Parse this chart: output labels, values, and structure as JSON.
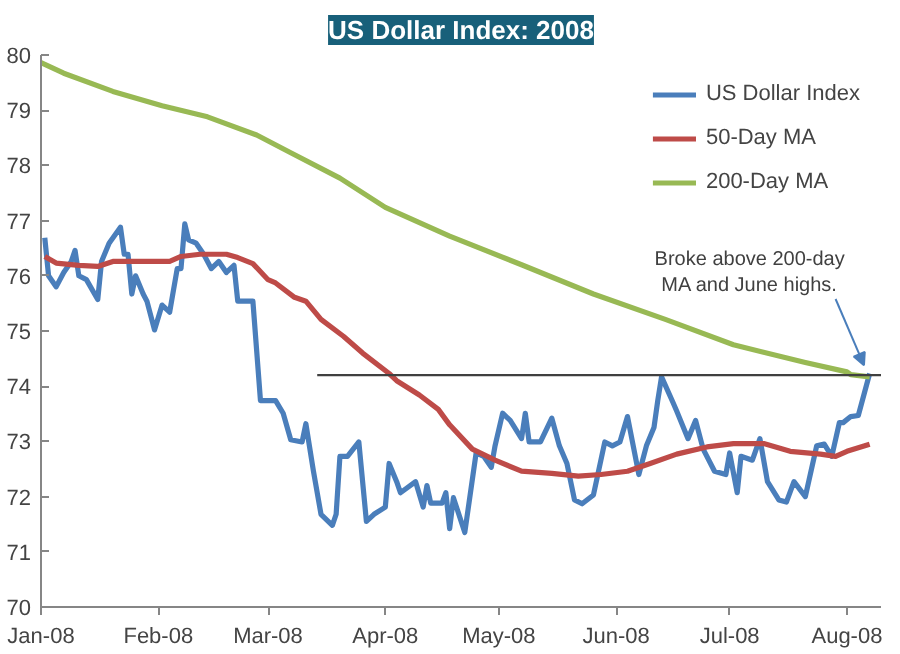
{
  "chart_data": {
    "type": "line",
    "title": "US Dollar Index: 2008",
    "xlim": [
      "2008-01-01",
      "2008-08-10"
    ],
    "xticks": [
      {
        "value": "2008-01-01",
        "label": "Jan-08"
      },
      {
        "value": "2008-02-01",
        "label": "Feb-08"
      },
      {
        "value": "2008-03-01",
        "label": "Mar-08"
      },
      {
        "value": "2008-04-01",
        "label": "Apr-08"
      },
      {
        "value": "2008-05-01",
        "label": "May-08"
      },
      {
        "value": "2008-06-01",
        "label": "Jun-08"
      },
      {
        "value": "2008-07-01",
        "label": "Jul-08"
      },
      {
        "value": "2008-08-01",
        "label": "Aug-08"
      }
    ],
    "ylim": [
      70,
      80
    ],
    "yticks": [
      70,
      71,
      72,
      73,
      74,
      75,
      76,
      77,
      78,
      79,
      80
    ],
    "grid": false,
    "legend": "top right",
    "line_style": "solid",
    "marker": "none",
    "series": [
      {
        "name": "US Dollar Index",
        "color": "#4a7ebb",
        "x": [
          "2008-01-02",
          "2008-01-03",
          "2008-01-05",
          "2008-01-07",
          "2008-01-09",
          "2008-01-10",
          "2008-01-11",
          "2008-01-13",
          "2008-01-16",
          "2008-01-17",
          "2008-01-19",
          "2008-01-22",
          "2008-01-23",
          "2008-01-24",
          "2008-01-25",
          "2008-01-26",
          "2008-01-28",
          "2008-01-29",
          "2008-01-31",
          "2008-02-02",
          "2008-02-04",
          "2008-02-06",
          "2008-02-07",
          "2008-02-08",
          "2008-02-09",
          "2008-02-11",
          "2008-02-13",
          "2008-02-15",
          "2008-02-17",
          "2008-02-19",
          "2008-02-21",
          "2008-02-22",
          "2008-02-26",
          "2008-02-28",
          "2008-03-03",
          "2008-03-05",
          "2008-03-07",
          "2008-03-10",
          "2008-03-11",
          "2008-03-13",
          "2008-03-15",
          "2008-03-18",
          "2008-03-19",
          "2008-03-20",
          "2008-03-22",
          "2008-03-25",
          "2008-03-27",
          "2008-03-29",
          "2008-04-01",
          "2008-04-02",
          "2008-04-04",
          "2008-04-05",
          "2008-04-09",
          "2008-04-11",
          "2008-04-12",
          "2008-04-13",
          "2008-04-16",
          "2008-04-17",
          "2008-04-18",
          "2008-04-19",
          "2008-04-22",
          "2008-04-25",
          "2008-04-27",
          "2008-04-29",
          "2008-04-30",
          "2008-05-02",
          "2008-05-04",
          "2008-05-07",
          "2008-05-08",
          "2008-05-09",
          "2008-05-12",
          "2008-05-15",
          "2008-05-17",
          "2008-05-19",
          "2008-05-21",
          "2008-05-23",
          "2008-05-26",
          "2008-05-29",
          "2008-05-31",
          "2008-06-02",
          "2008-06-04",
          "2008-06-07",
          "2008-06-09",
          "2008-06-11",
          "2008-06-12",
          "2008-06-13",
          "2008-06-16",
          "2008-06-17",
          "2008-06-20",
          "2008-06-22",
          "2008-06-24",
          "2008-06-27",
          "2008-06-30",
          "2008-07-01",
          "2008-07-03",
          "2008-07-04",
          "2008-07-07",
          "2008-07-09",
          "2008-07-11",
          "2008-07-14",
          "2008-07-16",
          "2008-07-18",
          "2008-07-21",
          "2008-07-24",
          "2008-07-26",
          "2008-07-28",
          "2008-07-30",
          "2008-07-31",
          "2008-08-02",
          "2008-08-04",
          "2008-08-07"
        ],
        "values": [
          76.69,
          76.0,
          75.8,
          76.06,
          76.26,
          76.46,
          76.0,
          75.93,
          75.57,
          76.26,
          76.59,
          76.88,
          76.39,
          76.39,
          75.67,
          76.0,
          75.67,
          75.54,
          75.02,
          75.47,
          75.34,
          76.13,
          76.13,
          76.94,
          76.65,
          76.59,
          76.39,
          76.13,
          76.26,
          76.06,
          76.19,
          75.54,
          75.54,
          73.74,
          73.74,
          73.51,
          73.03,
          72.99,
          73.32,
          72.46,
          71.68,
          71.48,
          71.68,
          72.73,
          72.73,
          72.99,
          71.55,
          71.68,
          71.81,
          72.6,
          72.27,
          72.07,
          72.27,
          71.81,
          72.2,
          71.88,
          71.88,
          72.07,
          71.42,
          71.98,
          71.35,
          72.79,
          72.73,
          72.53,
          72.92,
          73.51,
          73.38,
          73.05,
          73.51,
          72.99,
          72.99,
          73.42,
          72.92,
          72.6,
          71.94,
          71.87,
          72.03,
          72.99,
          72.92,
          72.99,
          73.45,
          72.4,
          72.92,
          73.25,
          73.74,
          74.17,
          73.71,
          73.55,
          73.05,
          73.38,
          72.86,
          72.46,
          72.4,
          72.79,
          72.07,
          72.73,
          72.66,
          73.05,
          72.27,
          71.94,
          71.9,
          72.27,
          72.0,
          72.92,
          72.95,
          72.73,
          73.34,
          73.34,
          73.45,
          73.47,
          74.23
        ]
      },
      {
        "name": "50-Day MA",
        "color": "#be4b48",
        "x": [
          "2008-01-02",
          "2008-01-05",
          "2008-01-11",
          "2008-01-16",
          "2008-01-20",
          "2008-01-30",
          "2008-02-04",
          "2008-02-07",
          "2008-02-12",
          "2008-02-19",
          "2008-02-22",
          "2008-02-26",
          "2008-03-01",
          "2008-03-03",
          "2008-03-08",
          "2008-03-11",
          "2008-03-15",
          "2008-03-21",
          "2008-03-26",
          "2008-04-02",
          "2008-04-04",
          "2008-04-10",
          "2008-04-15",
          "2008-04-18",
          "2008-04-24",
          "2008-04-30",
          "2008-05-07",
          "2008-05-15",
          "2008-05-22",
          "2008-05-28",
          "2008-06-04",
          "2008-06-10",
          "2008-06-17",
          "2008-06-25",
          "2008-07-02",
          "2008-07-10",
          "2008-07-17",
          "2008-07-25",
          "2008-07-29",
          "2008-08-01",
          "2008-08-07"
        ],
        "values": [
          76.35,
          76.23,
          76.19,
          76.17,
          76.26,
          76.26,
          76.26,
          76.35,
          76.39,
          76.39,
          76.33,
          76.22,
          75.93,
          75.87,
          75.61,
          75.54,
          75.21,
          74.9,
          74.6,
          74.23,
          74.1,
          73.84,
          73.58,
          73.3,
          72.86,
          72.66,
          72.46,
          72.42,
          72.37,
          72.4,
          72.46,
          72.6,
          72.77,
          72.9,
          72.96,
          72.96,
          72.82,
          72.77,
          72.73,
          72.82,
          72.95
        ]
      },
      {
        "name": "200-Day MA",
        "color": "#98b954",
        "x": [
          "2008-01-01",
          "2008-01-07",
          "2008-01-20",
          "2008-02-02",
          "2008-02-14",
          "2008-02-27",
          "2008-03-07",
          "2008-03-20",
          "2008-04-01",
          "2008-04-18",
          "2008-05-07",
          "2008-05-26",
          "2008-06-14",
          "2008-07-02",
          "2008-07-21",
          "2008-08-01",
          "2008-08-02",
          "2008-08-07"
        ],
        "values": [
          79.86,
          79.67,
          79.34,
          79.08,
          78.88,
          78.55,
          78.23,
          77.77,
          77.24,
          76.72,
          76.2,
          75.67,
          75.21,
          74.75,
          74.43,
          74.26,
          74.21,
          74.17
        ]
      },
      {
        "color": "#404040",
        "x": [
          "2008-03-14",
          "2008-08-10"
        ],
        "values": [
          74.2,
          74.2
        ]
      }
    ],
    "annotations": [
      {
        "text": "Broke above 200-day MA and June highs.",
        "x": "2008-08-07",
        "y": 74.23
      }
    ]
  }
}
